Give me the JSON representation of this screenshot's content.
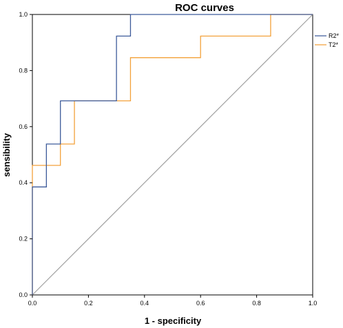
{
  "chart_data": {
    "type": "line",
    "title": "ROC curves",
    "xlabel": "1 - specificity",
    "ylabel": "sensibility",
    "xlim": [
      0,
      1
    ],
    "ylim": [
      0,
      1
    ],
    "x_ticks": [
      "0.0",
      "0.2",
      "0.4",
      "0.6",
      "0.8",
      "1.0"
    ],
    "y_ticks": [
      "0.0",
      "0.2",
      "0.4",
      "0.6",
      "0.8",
      "1.0"
    ],
    "grid": false,
    "legend_position": "right",
    "reference_line": {
      "x": [
        0,
        1
      ],
      "y": [
        0,
        1
      ],
      "color": "#a0a0a0"
    },
    "series": [
      {
        "name": "R2*",
        "color": "#3c5a9a",
        "x": [
          0,
          0,
          0.05,
          0.05,
          0.1,
          0.1,
          0.3,
          0.3,
          0.35,
          0.35,
          1
        ],
        "y": [
          0,
          0.385,
          0.385,
          0.538,
          0.538,
          0.692,
          0.692,
          0.923,
          0.923,
          1,
          1
        ]
      },
      {
        "name": "T2*",
        "color": "#f3a13a",
        "x": [
          0,
          0,
          0.1,
          0.1,
          0.15,
          0.15,
          0.35,
          0.35,
          0.6,
          0.6,
          0.85,
          0.85,
          1
        ],
        "y": [
          0,
          0.462,
          0.462,
          0.538,
          0.538,
          0.692,
          0.692,
          0.846,
          0.846,
          0.923,
          0.923,
          1,
          1
        ]
      }
    ]
  }
}
